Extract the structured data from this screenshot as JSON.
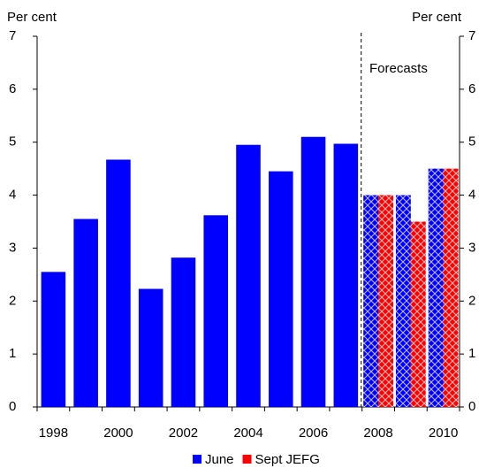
{
  "chart_data": {
    "type": "bar",
    "y_label": "Per cent",
    "y2_label": "Per cent",
    "annotation": "Forecasts",
    "categories": [
      "1998",
      null,
      "2000",
      null,
      "2002",
      null,
      "2004",
      null,
      "2006",
      null,
      "2008",
      null,
      "2010"
    ],
    "series": [
      {
        "name": "June",
        "color": "#0000ff",
        "values": [
          2.55,
          3.55,
          4.67,
          2.23,
          2.82,
          3.62,
          4.95,
          4.45,
          5.1,
          4.97,
          4.0,
          4.0,
          4.5
        ]
      },
      {
        "name": "Sept JEFG",
        "color": "#ff0000",
        "values": [
          null,
          null,
          null,
          null,
          null,
          null,
          null,
          null,
          null,
          null,
          4.0,
          3.5,
          4.5
        ]
      }
    ],
    "ylim": [
      0,
      7
    ],
    "yticks": [
      0,
      1,
      2,
      3,
      4,
      5,
      6,
      7
    ],
    "y2lim": [
      0,
      7
    ],
    "y2ticks": [
      0,
      1,
      2,
      3,
      4,
      5,
      6,
      7
    ],
    "grid": false
  }
}
